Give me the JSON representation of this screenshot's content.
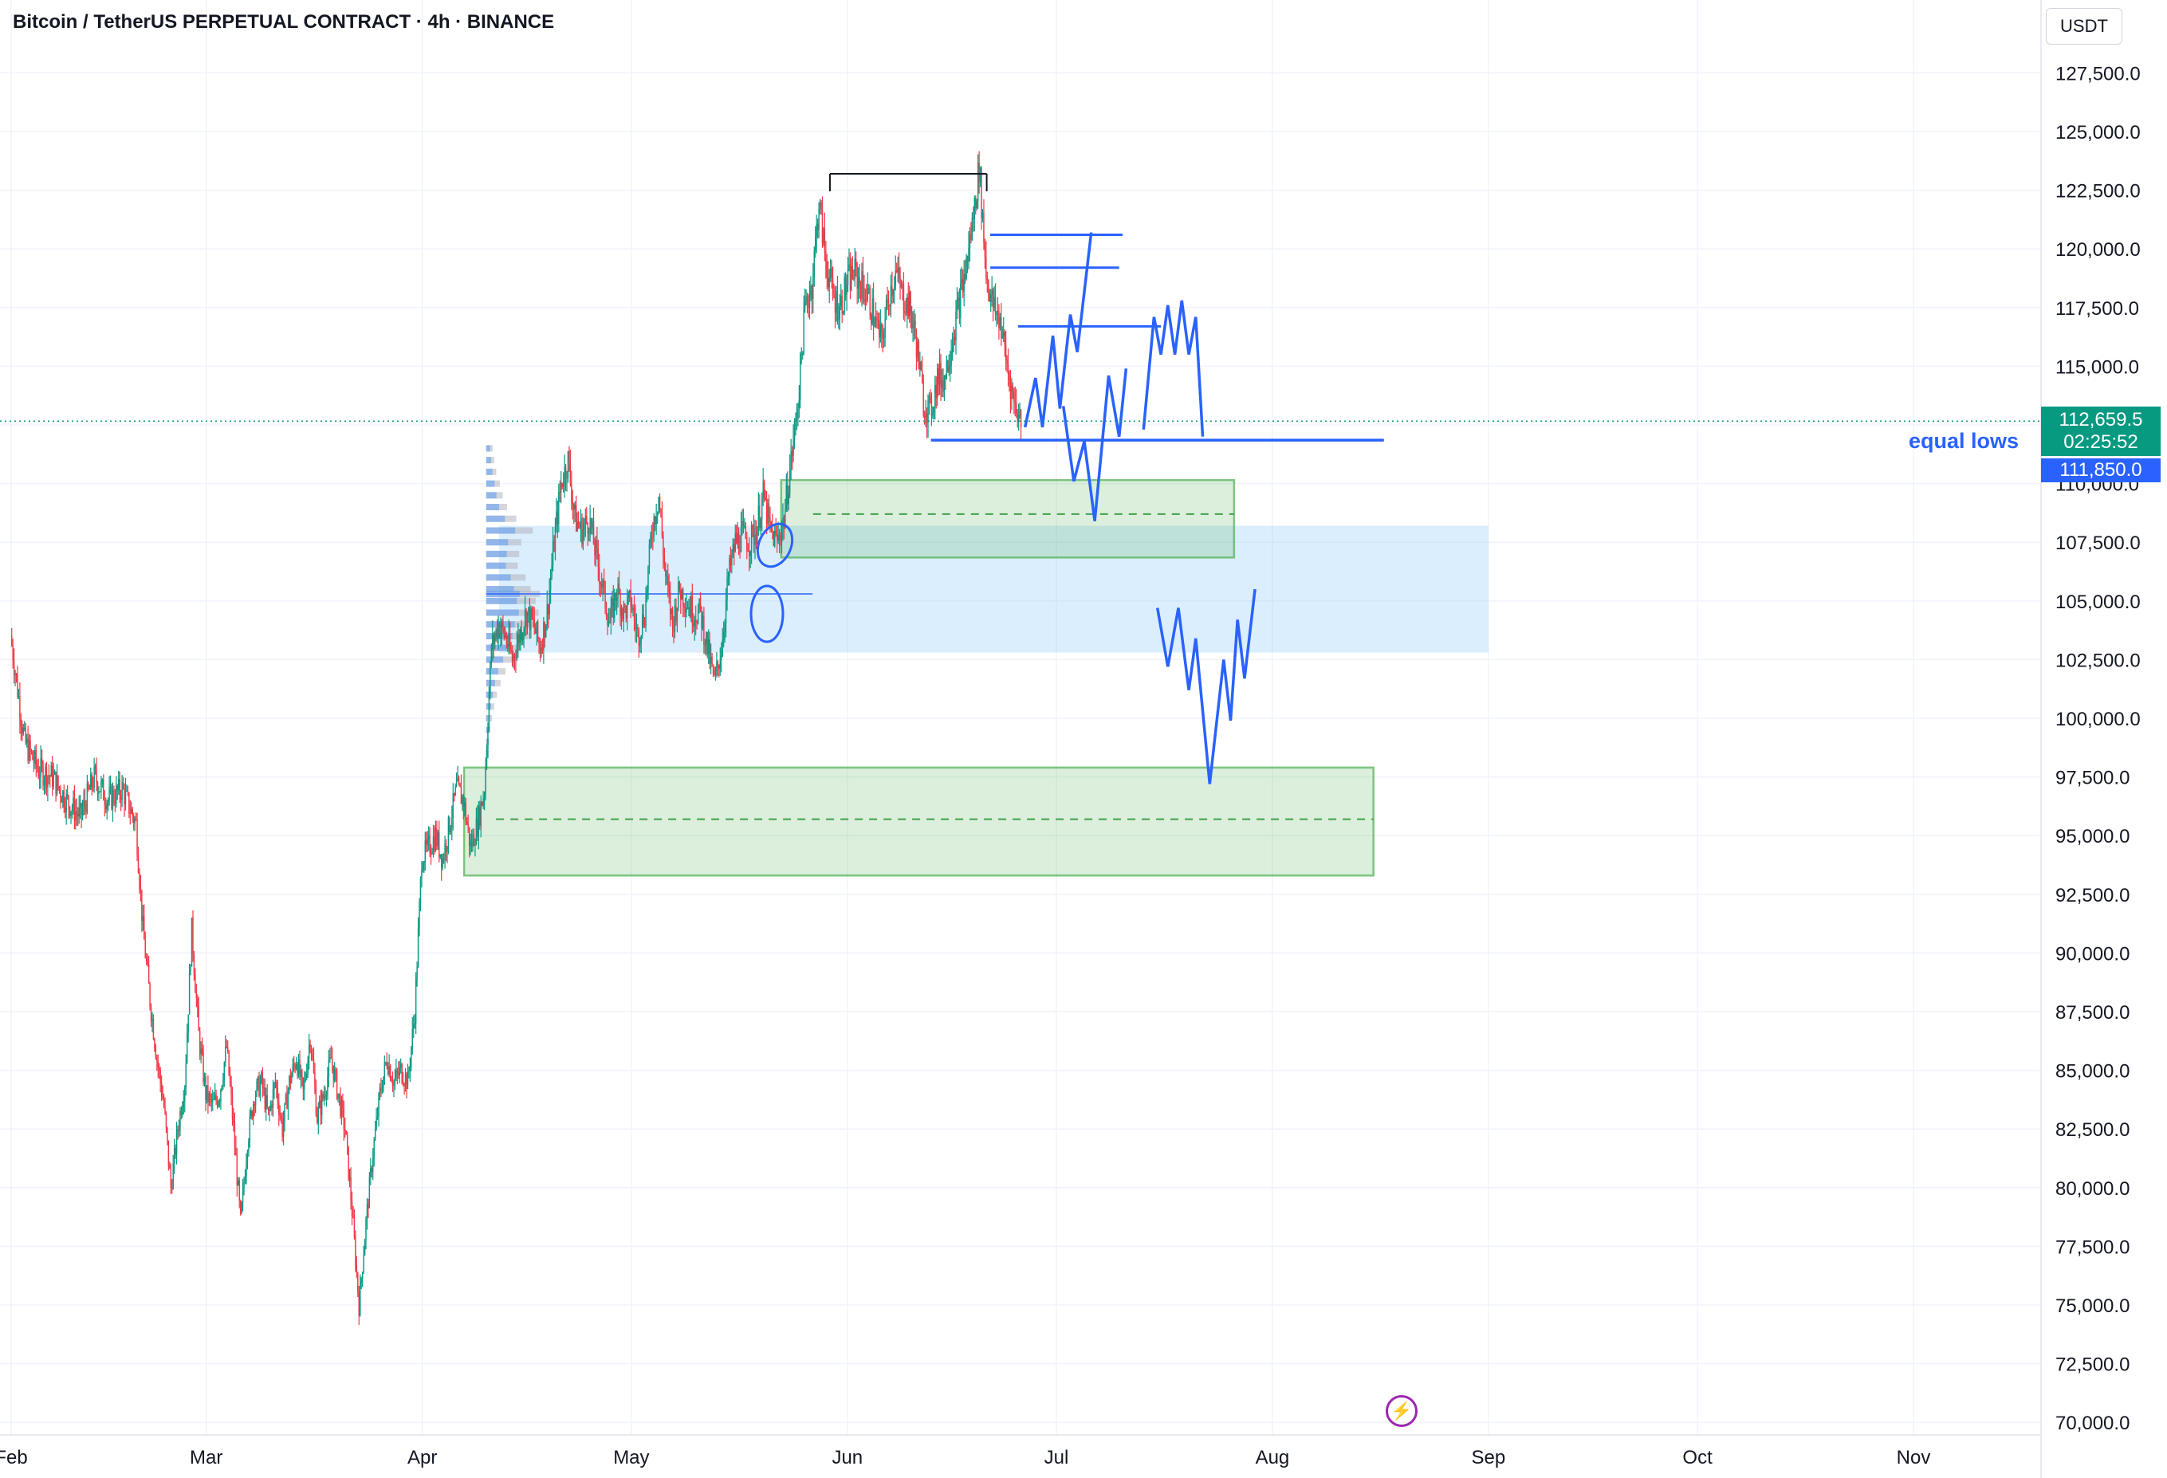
{
  "header": {
    "title": "Bitcoin / TetherUS PERPETUAL CONTRACT · 4h · BINANCE"
  },
  "price_axis": {
    "currency": "USDT",
    "last_price_label": "112,659.5",
    "countdown": "02:25:52",
    "level_label": "111,850.0"
  },
  "annotations": {
    "equal_lows_text": "equal lows"
  },
  "icons": {
    "events": "lightning-bolt-icon"
  },
  "colors": {
    "up_candle": "#089981",
    "down_candle": "#f23645",
    "drawing_blue": "#2962ff",
    "demand_zone": "#4caf50",
    "value_area": "#90caf9",
    "grid": "#f0f3fa"
  },
  "chart_data": {
    "type": "candlestick",
    "title": "Bitcoin / TetherUS PERPETUAL CONTRACT · 4h · BINANCE",
    "timeframe": "4h",
    "x_tick_labels": [
      "Feb",
      "Mar",
      "Apr",
      "May",
      "Jun",
      "Jul",
      "Aug",
      "Sep",
      "Oct",
      "Nov"
    ],
    "y_tick_labels": [
      "70,000.0",
      "72,500.0",
      "75,000.0",
      "77,500.0",
      "80,000.0",
      "82,500.0",
      "85,000.0",
      "87,500.0",
      "90,000.0",
      "92,500.0",
      "95,000.0",
      "97,500.0",
      "100,000.0",
      "102,500.0",
      "105,000.0",
      "107,500.0",
      "110,000.0",
      "112,500.0",
      "115,000.0",
      "117,500.0",
      "120,000.0",
      "122,500.0",
      "125,000.0",
      "127,500.0"
    ],
    "ylim": [
      69500,
      128500
    ],
    "x_range_days": [
      -1,
      218
    ],
    "price_path": [
      [
        0,
        103500
      ],
      [
        2,
        99000
      ],
      [
        4,
        97800
      ],
      [
        6,
        97500
      ],
      [
        8,
        96500
      ],
      [
        10,
        95800
      ],
      [
        12,
        97500
      ],
      [
        14,
        96500
      ],
      [
        16,
        97000
      ],
      [
        18,
        95500
      ],
      [
        19,
        91000
      ],
      [
        20,
        88000
      ],
      [
        21,
        85500
      ],
      [
        22,
        83500
      ],
      [
        23,
        80000
      ],
      [
        24,
        82500
      ],
      [
        25,
        84500
      ],
      [
        26,
        91000
      ],
      [
        27,
        86500
      ],
      [
        28,
        84000
      ],
      [
        29,
        83500
      ],
      [
        30,
        84000
      ],
      [
        31,
        86000
      ],
      [
        32,
        82500
      ],
      [
        33,
        78500
      ],
      [
        34,
        82000
      ],
      [
        35,
        84000
      ],
      [
        36,
        84500
      ],
      [
        37,
        83000
      ],
      [
        38,
        84500
      ],
      [
        39,
        82500
      ],
      [
        40,
        84500
      ],
      [
        41,
        85500
      ],
      [
        42,
        84000
      ],
      [
        43,
        86500
      ],
      [
        44,
        83000
      ],
      [
        45,
        84000
      ],
      [
        46,
        85500
      ],
      [
        47,
        84000
      ],
      [
        48,
        82500
      ],
      [
        49,
        79000
      ],
      [
        50,
        75000
      ],
      [
        51,
        78500
      ],
      [
        52,
        81500
      ],
      [
        53,
        84000
      ],
      [
        54,
        85500
      ],
      [
        55,
        84500
      ],
      [
        56,
        85000
      ],
      [
        57,
        84500
      ],
      [
        58,
        87500
      ],
      [
        59,
        94000
      ],
      [
        60,
        94500
      ],
      [
        61,
        95000
      ],
      [
        62,
        94000
      ],
      [
        63,
        95500
      ],
      [
        64,
        97000
      ],
      [
        65,
        96500
      ],
      [
        66,
        94500
      ],
      [
        67,
        95500
      ],
      [
        68,
        97000
      ],
      [
        69,
        103000
      ],
      [
        70,
        104000
      ],
      [
        71,
        103500
      ],
      [
        72,
        102500
      ],
      [
        73,
        103500
      ],
      [
        74,
        104500
      ],
      [
        75,
        104000
      ],
      [
        76,
        103000
      ],
      [
        77,
        104500
      ],
      [
        78,
        107500
      ],
      [
        79,
        110000
      ],
      [
        80,
        111000
      ],
      [
        81,
        108500
      ],
      [
        82,
        108000
      ],
      [
        83,
        108500
      ],
      [
        84,
        107000
      ],
      [
        85,
        105500
      ],
      [
        86,
        104000
      ],
      [
        87,
        105500
      ],
      [
        88,
        104500
      ],
      [
        89,
        105000
      ],
      [
        90,
        103500
      ],
      [
        91,
        104500
      ],
      [
        92,
        108000
      ],
      [
        93,
        109500
      ],
      [
        94,
        106000
      ],
      [
        95,
        104000
      ],
      [
        96,
        105500
      ],
      [
        97,
        105000
      ],
      [
        98,
        104500
      ],
      [
        99,
        104500
      ],
      [
        100,
        103000
      ],
      [
        101,
        101500
      ],
      [
        102,
        103000
      ],
      [
        103,
        106000
      ],
      [
        104,
        107500
      ],
      [
        105,
        107800
      ],
      [
        106,
        107500
      ],
      [
        107,
        108000
      ],
      [
        108,
        109500
      ],
      [
        109,
        108000
      ],
      [
        110,
        107500
      ],
      [
        111,
        108500
      ],
      [
        112,
        111000
      ],
      [
        113,
        113500
      ],
      [
        114,
        117500
      ],
      [
        115,
        118500
      ],
      [
        116,
        122000
      ],
      [
        117,
        119500
      ],
      [
        118,
        118000
      ],
      [
        119,
        117500
      ],
      [
        120,
        118500
      ],
      [
        121,
        119000
      ],
      [
        122,
        118500
      ],
      [
        123,
        118000
      ],
      [
        124,
        117000
      ],
      [
        125,
        116000
      ],
      [
        126,
        118000
      ],
      [
        127,
        119000
      ],
      [
        128,
        118000
      ],
      [
        129,
        117500
      ],
      [
        130,
        116000
      ],
      [
        131,
        113500
      ],
      [
        132,
        113000
      ],
      [
        133,
        114500
      ],
      [
        134,
        114500
      ],
      [
        135,
        116000
      ],
      [
        136,
        117500
      ],
      [
        137,
        119000
      ],
      [
        138,
        121000
      ],
      [
        139,
        123500
      ],
      [
        140,
        119000
      ],
      [
        141,
        117500
      ],
      [
        142,
        117000
      ],
      [
        143,
        115000
      ],
      [
        144,
        113500
      ],
      [
        145,
        112659.5
      ]
    ],
    "drawings": {
      "demand_zone_upper": {
        "price_top": 110150,
        "price_bottom": 106850,
        "midline": 108700,
        "day_start": 110.5,
        "day_end": 175.5
      },
      "value_area_band": {
        "price_top": 108200,
        "price_bottom": 102800,
        "day_start": 70,
        "day_end": 212
      },
      "demand_zone_lower": {
        "price_top": 97900,
        "price_bottom": 93300,
        "midline": 95700,
        "day_start": 65,
        "day_end": 195.5
      },
      "point_of_control": {
        "price": 105300,
        "day_start": 70,
        "day_end": 115
      },
      "equal_lows_line": {
        "price": 111850,
        "day_start": 132,
        "day_end": 197
      },
      "high_line": {
        "price": 123200,
        "day_start": 117.5,
        "day_end": 140
      },
      "resistance_lines": [
        {
          "price": 120600,
          "day_start": 140.5,
          "day_end": 159.5
        },
        {
          "price": 119200,
          "day_start": 140.5,
          "day_end": 159
        },
        {
          "price": 116700,
          "day_start": 144.5,
          "day_end": 165
        }
      ],
      "projection_path_1": [
        [
          145.5,
          112400
        ],
        [
          147,
          114500
        ],
        [
          148,
          112400
        ],
        [
          149.5,
          116300
        ],
        [
          150.5,
          113200
        ],
        [
          152,
          117200
        ],
        [
          153,
          115600
        ],
        [
          155,
          120700
        ]
      ],
      "projection_path_2": [
        [
          151,
          113300
        ],
        [
          152.5,
          110100
        ],
        [
          154,
          111800
        ],
        [
          155.5,
          108400
        ],
        [
          157.5,
          114600
        ],
        [
          159,
          112000
        ],
        [
          160,
          114900
        ]
      ],
      "projection_path_3": [
        [
          162.5,
          112300
        ],
        [
          164,
          117100
        ],
        [
          165,
          115500
        ],
        [
          166,
          117600
        ],
        [
          167,
          115500
        ],
        [
          168,
          117800
        ],
        [
          169,
          115500
        ],
        [
          170,
          117100
        ],
        [
          171,
          112000
        ]
      ],
      "projection_path_4": [
        [
          164.5,
          104700
        ],
        [
          166,
          102200
        ],
        [
          167.5,
          104700
        ],
        [
          169,
          101200
        ],
        [
          170,
          103400
        ],
        [
          172,
          97200
        ],
        [
          174,
          102500
        ],
        [
          175,
          99900
        ],
        [
          176,
          104200
        ],
        [
          177,
          101700
        ],
        [
          178.5,
          105500
        ]
      ],
      "volume_profile": {
        "day_anchor": 70,
        "rows": [
          [
            111500,
            18
          ],
          [
            111000,
            22
          ],
          [
            110500,
            28
          ],
          [
            110000,
            38
          ],
          [
            109500,
            46
          ],
          [
            109000,
            58
          ],
          [
            108500,
            84
          ],
          [
            108000,
            130
          ],
          [
            107500,
            98
          ],
          [
            107000,
            92
          ],
          [
            106500,
            88
          ],
          [
            106000,
            110
          ],
          [
            105500,
            124
          ],
          [
            105300,
            150
          ],
          [
            105000,
            138
          ],
          [
            104500,
            146
          ],
          [
            104000,
            128
          ],
          [
            103500,
            118
          ],
          [
            103000,
            96
          ],
          [
            102500,
            76
          ],
          [
            102000,
            54
          ],
          [
            101500,
            40
          ],
          [
            101000,
            30
          ],
          [
            100500,
            22
          ],
          [
            100000,
            16
          ],
          [
            99500,
            12
          ],
          [
            99000,
            9
          ],
          [
            98500,
            7
          ]
        ]
      }
    }
  }
}
